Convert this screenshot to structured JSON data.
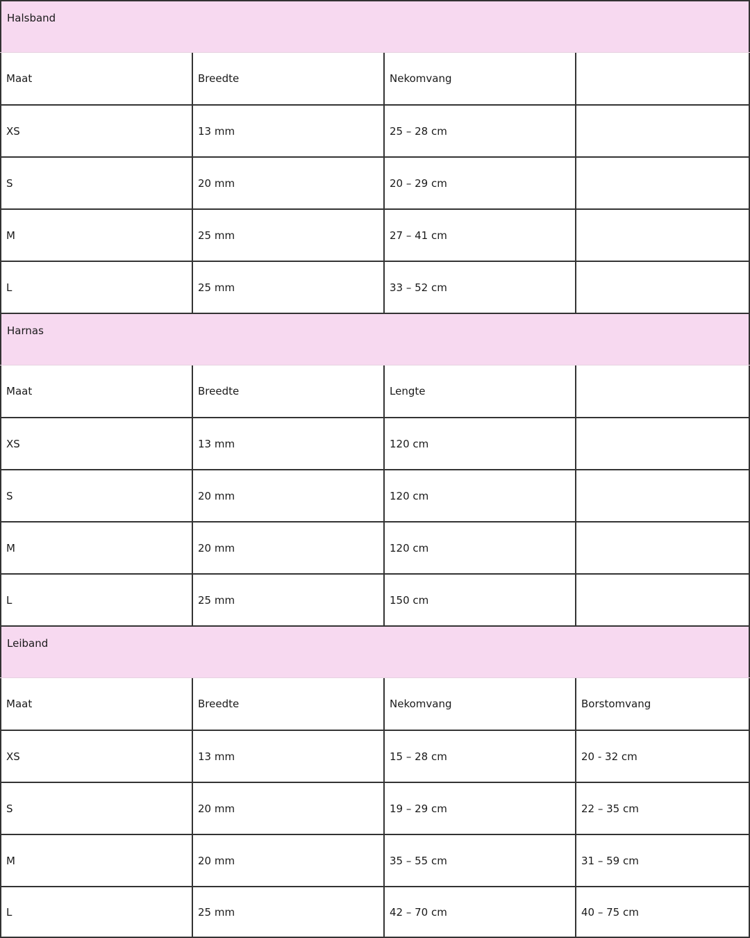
{
  "colors": {
    "section_header_bg": "#f7d9f0",
    "border": "#333333"
  },
  "sections": [
    {
      "title": "Halsband",
      "headers": [
        "Maat",
        "Breedte",
        "Nekomvang",
        ""
      ],
      "rows": [
        [
          "XS",
          "13 mm",
          "25 – 28 cm",
          ""
        ],
        [
          "S",
          "20 mm",
          "20 – 29 cm",
          ""
        ],
        [
          "M",
          "25 mm",
          "27 – 41 cm",
          ""
        ],
        [
          "L",
          "25 mm",
          "33 – 52 cm",
          ""
        ]
      ]
    },
    {
      "title": "Harnas",
      "headers": [
        "Maat",
        "Breedte",
        "Lengte",
        ""
      ],
      "rows": [
        [
          "XS",
          "13 mm",
          "120 cm",
          ""
        ],
        [
          "S",
          "20 mm",
          "120 cm",
          ""
        ],
        [
          "M",
          "20 mm",
          "120 cm",
          ""
        ],
        [
          "L",
          "25 mm",
          "150 cm",
          ""
        ]
      ]
    },
    {
      "title": "Leiband",
      "headers": [
        "Maat",
        "Breedte",
        "Nekomvang",
        "Borstomvang"
      ],
      "rows": [
        [
          "XS",
          "13 mm",
          "15 – 28 cm",
          "20 - 32 cm"
        ],
        [
          "S",
          "20 mm",
          "19 – 29 cm",
          "22 – 35 cm"
        ],
        [
          "M",
          "20 mm",
          "35 – 55 cm",
          "31 – 59 cm"
        ],
        [
          "L",
          "25 mm",
          "42 – 70 cm",
          "40 – 75 cm"
        ]
      ]
    }
  ]
}
